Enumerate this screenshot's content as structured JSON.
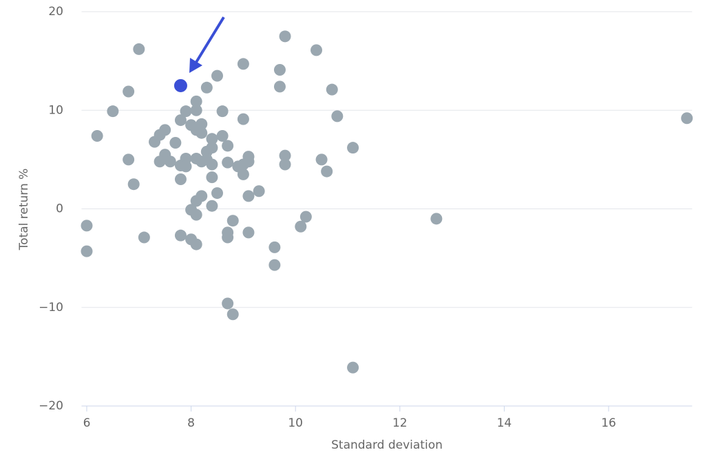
{
  "chart_data": {
    "type": "scatter",
    "x_label": "Standard deviation",
    "y_label": "Total return %",
    "xlim": [
      5.9,
      17.6
    ],
    "ylim": [
      -20,
      20
    ],
    "xticks": [
      6,
      8,
      10,
      12,
      14,
      16
    ],
    "yticks": [
      {
        "value": -20,
        "label": "−20"
      },
      {
        "value": -10,
        "label": "−10"
      },
      0,
      10,
      20
    ],
    "grid": true,
    "series": [
      {
        "color": "#9aa7b0",
        "x": [
          7.0,
          9.8,
          10.4,
          9.0,
          9.7,
          8.5,
          8.3,
          9.7,
          6.8,
          10.7,
          8.1,
          6.5,
          7.9,
          8.1,
          8.6,
          10.8,
          9.0,
          7.8,
          17.5,
          8.0,
          8.2,
          7.5,
          8.1,
          8.2,
          6.2,
          7.4,
          8.6,
          8.4,
          7.3,
          7.7,
          8.4,
          8.7,
          11.1,
          7.5,
          9.1,
          9.8,
          8.3,
          7.9,
          8.1,
          6.8,
          10.5,
          7.4,
          7.6,
          8.2,
          8.3,
          9.1,
          8.7,
          7.8,
          7.9,
          8.4,
          9.0,
          8.9,
          9.8,
          10.6,
          9.0,
          8.4,
          7.8,
          6.9,
          9.3,
          8.5,
          8.2,
          9.1,
          8.1,
          8.4,
          8.0,
          8.1,
          8.8,
          10.2,
          12.7,
          6.0,
          10.1,
          8.7,
          9.1,
          7.8,
          7.1,
          8.7,
          8.0,
          8.1,
          6.0,
          9.6,
          9.6,
          8.7,
          8.8,
          11.1
        ],
        "values": [
          16.2,
          17.5,
          16.1,
          14.7,
          14.1,
          13.5,
          12.3,
          12.4,
          11.9,
          12.1,
          10.9,
          9.9,
          9.9,
          10.0,
          9.9,
          9.4,
          9.1,
          9.0,
          9.2,
          8.5,
          8.6,
          8.0,
          8.0,
          7.7,
          7.4,
          7.5,
          7.4,
          7.1,
          6.8,
          6.7,
          6.2,
          6.4,
          6.2,
          5.5,
          5.3,
          5.4,
          5.8,
          5.1,
          5.1,
          5.0,
          5.0,
          4.8,
          4.8,
          4.8,
          5.0,
          4.8,
          4.7,
          4.4,
          4.3,
          4.5,
          4.5,
          4.3,
          4.5,
          3.8,
          3.5,
          3.2,
          3.0,
          2.5,
          1.8,
          1.6,
          1.3,
          1.3,
          0.8,
          0.3,
          -0.1,
          -0.6,
          -1.2,
          -0.8,
          -1.0,
          -1.7,
          -1.8,
          -2.4,
          -2.4,
          -2.7,
          -2.9,
          -2.9,
          -3.1,
          -3.6,
          -4.3,
          -3.9,
          -5.7,
          -9.6,
          -10.7,
          -16.1
        ]
      },
      {
        "color": "#3a4fd6",
        "x": [
          7.8
        ],
        "values": [
          12.5
        ]
      }
    ]
  }
}
